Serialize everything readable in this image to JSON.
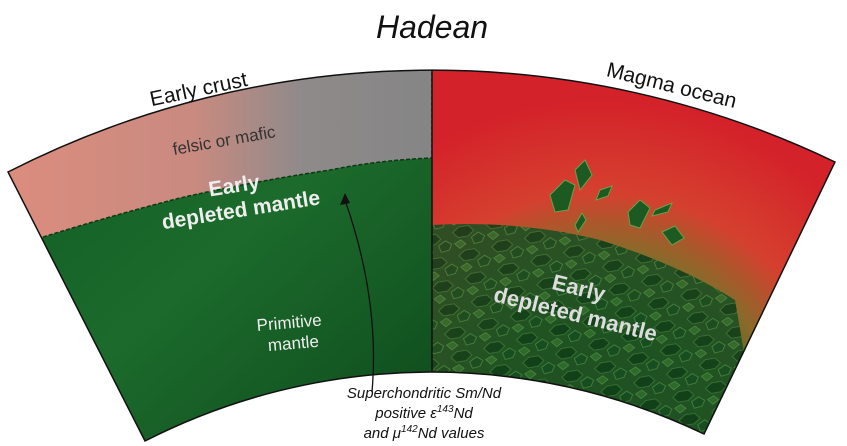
{
  "title": "Hadean",
  "left": {
    "crust_label": "Early crust",
    "crust_type": "felsic or mafic",
    "depleted_mantle": [
      "Early",
      "depleted mantle"
    ],
    "primitive_mantle": [
      "Primitive",
      "mantle"
    ]
  },
  "right": {
    "label": "Magma ocean",
    "depleted_mantle": [
      "Early",
      "depleted mantle"
    ]
  },
  "caption": {
    "line1": "Superchondritic Sm/Nd",
    "line2": {
      "before": "positive ε",
      "sup": "143",
      "after": "Nd"
    },
    "line3": {
      "before": "and μ",
      "sup": "142",
      "after": "Nd values"
    }
  }
}
